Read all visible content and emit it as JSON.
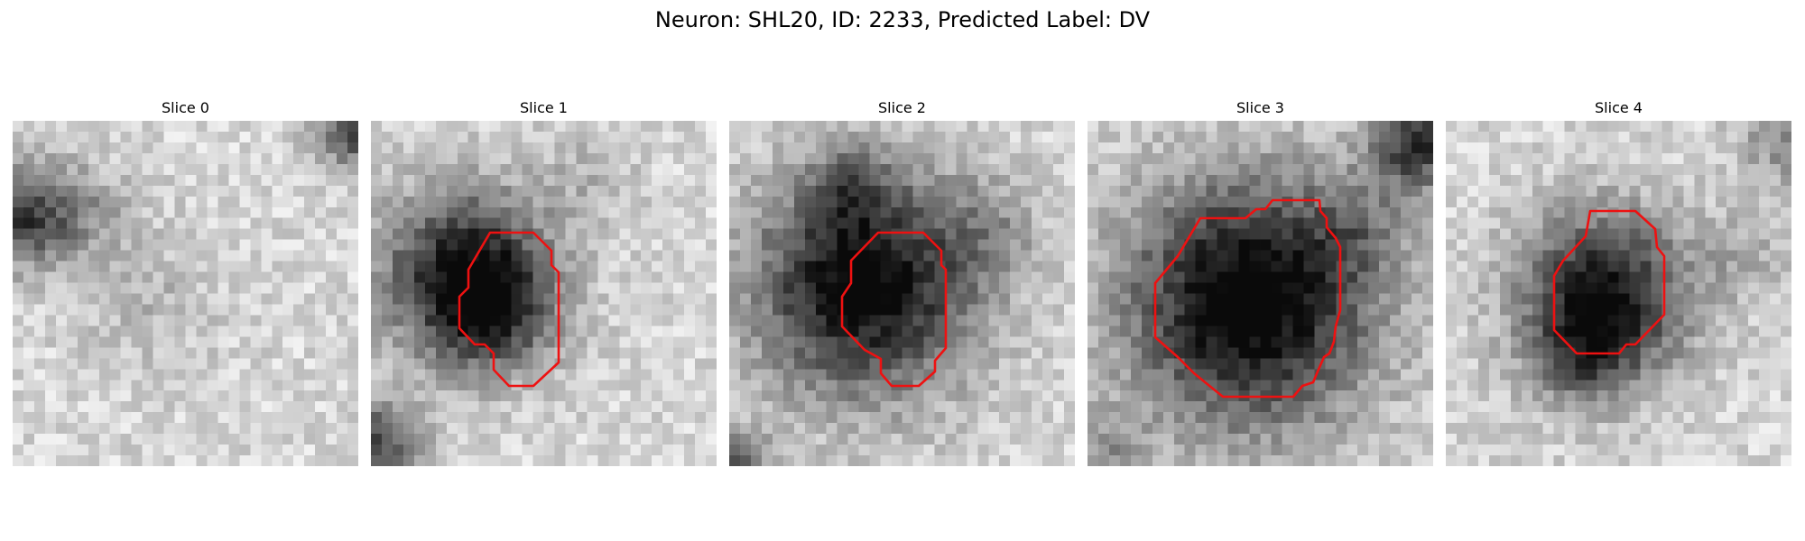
{
  "figure": {
    "title": "Neuron: SHL20, ID: 2233, Predicted Label: DV"
  },
  "colors": {
    "background": "#ffffff",
    "contour": "#ee1111",
    "text": "#000000"
  },
  "slices": [
    {
      "title": "Slice 0",
      "has_contour": false
    },
    {
      "title": "Slice 1",
      "has_contour": true
    },
    {
      "title": "Slice 2",
      "has_contour": true
    },
    {
      "title": "Slice 3",
      "has_contour": true
    },
    {
      "title": "Slice 4",
      "has_contour": true
    }
  ]
}
